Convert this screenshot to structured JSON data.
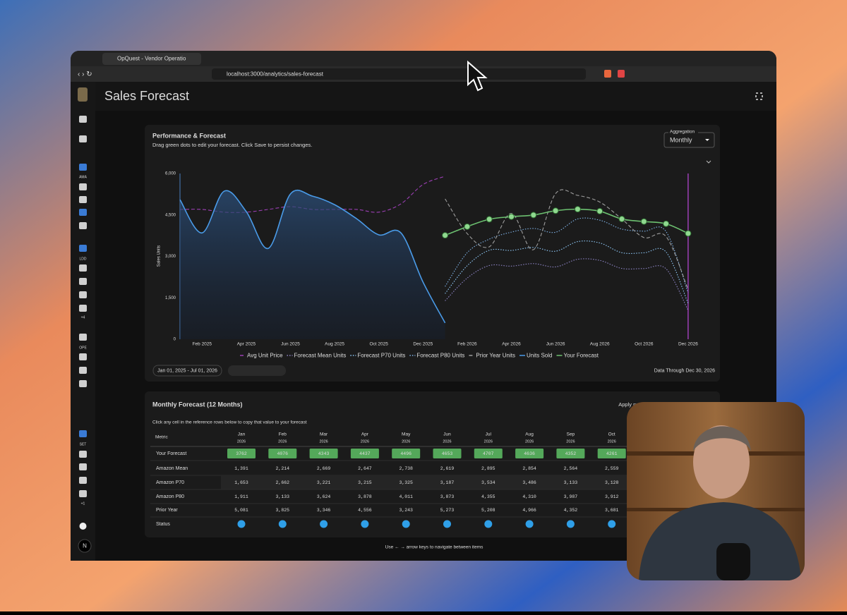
{
  "browser": {
    "tab_title": "OpQuest - Vendor Operatio",
    "url": "localhost:3000/analytics/sales-forecast"
  },
  "app": {
    "title": "Sales Forecast",
    "sidebar_labels": [
      "AMA",
      "LDD",
      "+4",
      "OPE",
      "SET",
      "+1"
    ],
    "avatar": "N"
  },
  "chart_card": {
    "title": "Performance & Forecast",
    "subtitle": "Drag green dots to edit your forecast. Click Save to persist changes.",
    "aggregation_label": "Aggregation",
    "aggregation_value": "Monthly",
    "date_range": "Jan 01, 2025 - Jul 01, 2026",
    "data_through": "Data Through Dec 30, 2026"
  },
  "chart_data": {
    "type": "line",
    "ylabel": "Sales Units",
    "categories": [
      null,
      "Feb 2025",
      null,
      "Apr 2025",
      null,
      "Jun 2025",
      null,
      "Aug 2025",
      null,
      "Oct 2025",
      null,
      "Dec 2025",
      null,
      "Feb 2026",
      null,
      "Apr 2026",
      null,
      "Jun 2026",
      null,
      "Aug 2026",
      null,
      "Oct 2026",
      null,
      "Dec 2026"
    ],
    "ylim": [
      0,
      6000
    ],
    "yticks": [
      0,
      {
        "value": 1500,
        "label": "1,500"
      },
      {
        "value": 3000,
        "label": "3,000"
      },
      {
        "value": 4500,
        "label": "4,500"
      },
      {
        "value": 6000,
        "label": "6,000"
      }
    ],
    "y2lim": [
      0,
      60
    ],
    "series": [
      {
        "name": "Avg Unit Price",
        "color": "#9c3fb5",
        "dash": "dashed",
        "axis": "y2",
        "values": [
          47,
          47,
          46,
          46,
          47,
          48,
          47,
          47,
          47,
          46,
          49,
          56,
          59,
          null,
          null,
          null,
          null,
          null,
          null,
          null,
          null,
          null,
          null,
          null
        ]
      },
      {
        "name": "Forecast Mean Units",
        "color": "#8f86c9",
        "dash": "dotted",
        "values": [
          null,
          null,
          null,
          null,
          null,
          null,
          null,
          null,
          null,
          null,
          null,
          null,
          1391,
          2214,
          2669,
          2647,
          2738,
          2619,
          2895,
          2854,
          2564,
          2559,
          2550,
          1050
        ]
      },
      {
        "name": "Forecast P70 Units",
        "color": "#90caf9",
        "dash": "dotted",
        "values": [
          null,
          null,
          null,
          null,
          null,
          null,
          null,
          null,
          null,
          null,
          null,
          null,
          1653,
          2662,
          3221,
          3215,
          3325,
          3187,
          3534,
          3486,
          3133,
          3128,
          3160,
          1300
        ]
      },
      {
        "name": "Forecast P80 Units",
        "color": "#7fb2e6",
        "dash": "dotted",
        "values": [
          null,
          null,
          null,
          null,
          null,
          null,
          null,
          null,
          null,
          null,
          null,
          null,
          1911,
          3133,
          3624,
          3878,
          4011,
          3873,
          4355,
          4310,
          3987,
          3912,
          3900,
          1680
        ]
      },
      {
        "name": "Prior Year Units",
        "color": "#9e9e9e",
        "dash": "dashed",
        "values": [
          null,
          null,
          null,
          null,
          null,
          null,
          null,
          null,
          null,
          null,
          null,
          null,
          5081,
          3825,
          3346,
          4556,
          3243,
          5273,
          5208,
          4966,
          4352,
          3681,
          3720,
          1800
        ]
      },
      {
        "name": "Units Sold",
        "color": "#4a9be8",
        "dash": "solid",
        "area": true,
        "values": [
          5050,
          3850,
          5360,
          4620,
          3290,
          5260,
          5180,
          4870,
          4360,
          3780,
          3850,
          2070,
          590,
          null,
          null,
          null,
          null,
          null,
          null,
          null,
          null,
          null,
          null,
          null
        ]
      },
      {
        "name": "Your Forecast",
        "color": "#6cc070",
        "dash": "solid",
        "markers": true,
        "values": [
          null,
          null,
          null,
          null,
          null,
          null,
          null,
          null,
          null,
          null,
          null,
          null,
          3762,
          4076,
          4343,
          4437,
          4496,
          4653,
          4707,
          4636,
          4352,
          4261,
          4180,
          3830
        ]
      }
    ]
  },
  "table": {
    "title": "Monthly Forecast (12 Months)",
    "preset_label": "Apply preset:",
    "hint": "Click any cell in the reference rows below to copy that value to your forecast",
    "metric_header": "Metric",
    "columns": [
      [
        "Jan",
        "2026"
      ],
      [
        "Feb",
        "2026"
      ],
      [
        "Mar",
        "2026"
      ],
      [
        "Apr",
        "2026"
      ],
      [
        "May",
        "2026"
      ],
      [
        "Jun",
        "2026"
      ],
      [
        "Jul",
        "2026"
      ],
      [
        "Aug",
        "2026"
      ],
      [
        "Sep",
        "2026"
      ],
      [
        "Oct",
        "2026"
      ]
    ],
    "rows": [
      {
        "label": "Your Forecast",
        "values": [
          "3762",
          "4076",
          "4343",
          "4437",
          "4496",
          "4653",
          "4707",
          "4636",
          "4352",
          "4261"
        ]
      },
      {
        "label": "Amazon Mean",
        "values": [
          "1,391",
          "2,214",
          "2,669",
          "2,647",
          "2,738",
          "2,619",
          "2,895",
          "2,854",
          "2,564",
          "2,559"
        ]
      },
      {
        "label": "Amazon P70",
        "values": [
          "1,653",
          "2,662",
          "3,221",
          "3,215",
          "3,325",
          "3,187",
          "3,534",
          "3,486",
          "3,133",
          "3,128"
        ]
      },
      {
        "label": "Amazon P80",
        "values": [
          "1,911",
          "3,133",
          "3,624",
          "3,878",
          "4,011",
          "3,873",
          "4,355",
          "4,310",
          "3,987",
          "3,912"
        ]
      },
      {
        "label": "Prior Year",
        "values": [
          "5,081",
          "3,825",
          "3,346",
          "4,556",
          "3,243",
          "5,273",
          "5,208",
          "4,966",
          "4,352",
          "3,681"
        ]
      }
    ],
    "status_label": "Status",
    "footer": "Use ← → arrow keys to navigate between items"
  }
}
